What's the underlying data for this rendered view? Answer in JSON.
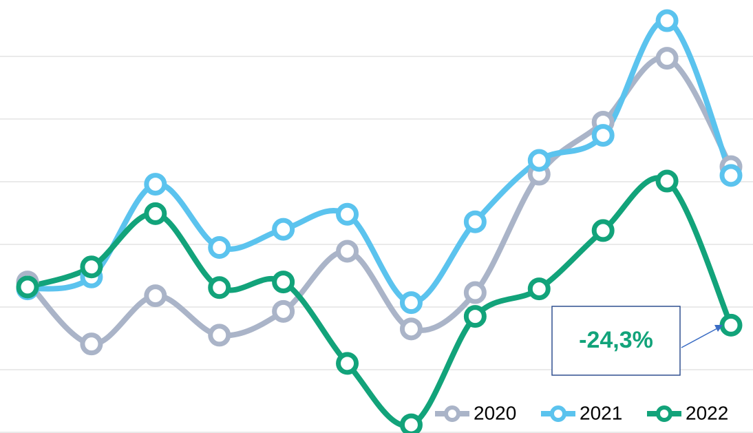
{
  "chart_data": {
    "type": "line",
    "categories": [
      null,
      null,
      null,
      null,
      null,
      null,
      null,
      null,
      null,
      null,
      null,
      null
    ],
    "series": [
      {
        "name": "2020",
        "color": "#aab4c8",
        "values": [
          2.4,
          1.41,
          2.18,
          1.55,
          1.93,
          2.89,
          1.65,
          2.23,
          4.12,
          4.95,
          5.97,
          4.24
        ]
      },
      {
        "name": "2021",
        "color": "#5bc3ee",
        "values": [
          2.29,
          2.48,
          3.96,
          2.95,
          3.24,
          3.48,
          2.07,
          3.36,
          4.34,
          4.74,
          6.57,
          4.1
        ]
      },
      {
        "name": "2022",
        "color": "#12a37a",
        "values": [
          2.32,
          2.64,
          3.49,
          2.31,
          2.4,
          1.1,
          0.12,
          1.85,
          2.29,
          3.22,
          4.01,
          1.71
        ]
      }
    ],
    "annotation": "-24,3%",
    "ylim": [
      0,
      6.9
    ],
    "yticks": [
      0,
      1,
      2,
      3,
      4,
      5,
      6
    ],
    "grid": true,
    "legend": "bottom-right"
  }
}
